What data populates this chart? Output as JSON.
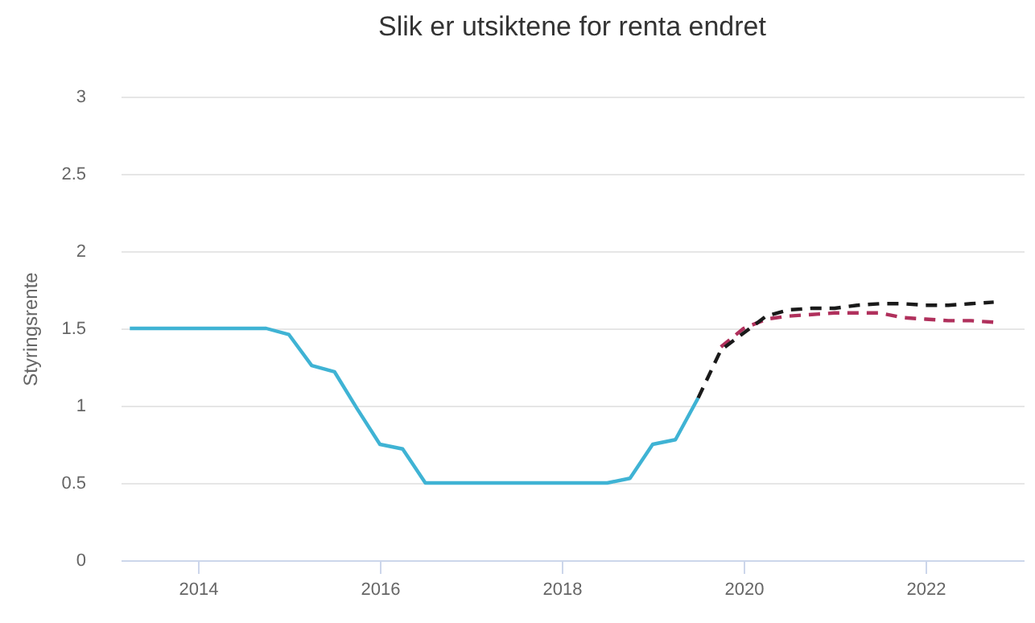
{
  "chart_data": {
    "type": "line",
    "title": "Slik er utsiktene for renta endret",
    "ylabel": "Styringsrente",
    "xlim": [
      2013.15,
      2023.08
    ],
    "xticks": [
      2014,
      2016,
      2018,
      2020,
      2022
    ],
    "ylim": [
      0,
      3
    ],
    "yticks": [
      0,
      0.5,
      1,
      1.5,
      2,
      2.5,
      3
    ],
    "grid": "y",
    "series": [
      {
        "color": "#3fb3d4",
        "line_style": "solid",
        "x": [
          2013.25,
          2013.5,
          2013.75,
          2014,
          2014.25,
          2014.5,
          2014.75,
          2015,
          2015.25,
          2015.5,
          2015.75,
          2016,
          2016.25,
          2016.5,
          2016.75,
          2017,
          2017.25,
          2017.5,
          2017.75,
          2018,
          2018.25,
          2018.5,
          2018.75,
          2019,
          2019.25,
          2019.5
        ],
        "values": [
          1.5,
          1.5,
          1.5,
          1.5,
          1.5,
          1.5,
          1.5,
          1.46,
          1.26,
          1.22,
          0.98,
          0.75,
          0.72,
          0.5,
          0.5,
          0.5,
          0.5,
          0.5,
          0.5,
          0.5,
          0.5,
          0.5,
          0.53,
          0.75,
          0.78,
          1.05
        ]
      },
      {
        "color": "#b0305c",
        "line_style": "dashed",
        "x": [
          2019.75,
          2020,
          2020.25,
          2020.5,
          2020.75,
          2021,
          2021.25,
          2021.5,
          2021.75,
          2022,
          2022.25,
          2022.5,
          2022.75
        ],
        "values": [
          1.38,
          1.5,
          1.56,
          1.58,
          1.59,
          1.6,
          1.6,
          1.6,
          1.57,
          1.56,
          1.55,
          1.55,
          1.54
        ]
      },
      {
        "color": "#1a1a1a",
        "line_style": "dashed",
        "x": [
          2019.5,
          2019.75,
          2020,
          2020.25,
          2020.5,
          2020.75,
          2021,
          2021.25,
          2021.5,
          2021.75,
          2022,
          2022.25,
          2022.5,
          2022.75
        ],
        "values": [
          1.05,
          1.36,
          1.47,
          1.58,
          1.62,
          1.63,
          1.63,
          1.65,
          1.66,
          1.66,
          1.65,
          1.65,
          1.66,
          1.67
        ]
      }
    ]
  }
}
